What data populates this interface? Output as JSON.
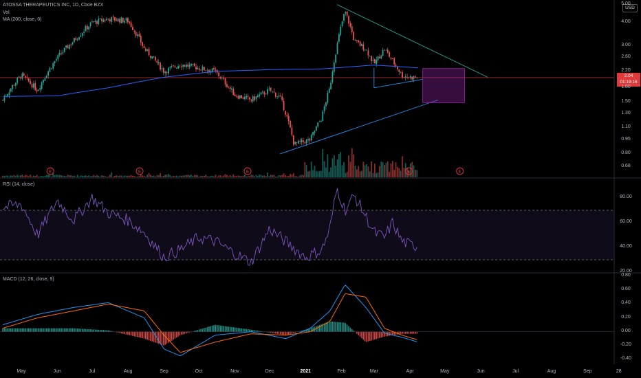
{
  "header": {
    "symbol": "ATOSSA THERAPEUTICS INC, 1D, Cboe BZX",
    "vol_label": "Vol",
    "ma_label": "MA (200, close, 0)",
    "currency": "USD"
  },
  "price_tag": {
    "value": "2.04",
    "countdown": "01:19:16"
  },
  "rsi_label": "RSI (14, close)",
  "macd_label": "MACD (12, 26, close, 9)",
  "colors": {
    "up": "#26a69a",
    "down": "#ef5350",
    "ma": "#2962ff",
    "rsi": "#7e57c2",
    "macd": "#2196f3",
    "signal": "#ff6d00",
    "trend_down": "#26a69a",
    "trend_up": "#2196f3",
    "box": "#9c27b0",
    "price_line": "#e03a3a"
  },
  "chart_data": [
    {
      "type": "candlestick",
      "panel": "price",
      "title": "ATOSSA THERAPEUTICS INC, 1D, Cboe BZX",
      "y_scale": "log",
      "ylim": [
        0.6,
        5.2
      ],
      "y_ticks": [
        "5.00",
        "4.00",
        "3.00",
        "2.60",
        "2.20",
        "1.80",
        "1.50",
        "1.30",
        "1.10",
        "0.95",
        "0.80",
        "0.68"
      ],
      "x_ticks": [
        "May",
        "Jun",
        "Jul",
        "Aug",
        "Sep",
        "Oct",
        "Nov",
        "Dec",
        "2021",
        "Feb",
        "Mar",
        "Apr",
        "May",
        "Jun",
        "Jul",
        "Aug",
        "Sep",
        "28"
      ],
      "earnings_markers": [
        "E",
        "E",
        "E",
        "E",
        "E"
      ],
      "series": [
        {
          "name": "Close",
          "x": [
            "2020-04-15",
            "2020-05-01",
            "2020-05-15",
            "2020-06-01",
            "2020-06-15",
            "2020-07-01",
            "2020-07-15",
            "2020-08-01",
            "2020-08-15",
            "2020-09-01",
            "2020-09-15",
            "2020-10-01",
            "2020-10-15",
            "2020-11-01",
            "2020-11-15",
            "2020-12-01",
            "2020-12-10",
            "2020-12-22",
            "2021-01-05",
            "2021-01-15",
            "2021-01-22",
            "2021-01-28",
            "2021-02-04",
            "2021-02-12",
            "2021-02-22",
            "2021-03-01",
            "2021-03-10",
            "2021-03-17",
            "2021-03-25",
            "2021-04-01",
            "2021-04-08"
          ],
          "values": [
            1.55,
            2.1,
            1.75,
            2.6,
            3.2,
            4.0,
            4.2,
            4.1,
            2.9,
            2.2,
            2.4,
            2.3,
            2.2,
            1.65,
            1.55,
            1.75,
            1.6,
            0.9,
            0.95,
            1.25,
            1.8,
            3.0,
            4.6,
            3.2,
            2.9,
            2.4,
            2.9,
            2.5,
            2.1,
            2.05,
            2.04
          ]
        },
        {
          "name": "MA (200, close, 0)",
          "x": [
            "2020-04-15",
            "2020-06-01",
            "2020-07-15",
            "2020-09-01",
            "2020-10-15",
            "2020-12-01",
            "2021-01-15",
            "2021-03-01",
            "2021-04-08"
          ],
          "values": [
            1.62,
            1.63,
            1.8,
            2.05,
            2.2,
            2.25,
            2.27,
            2.38,
            2.3
          ]
        }
      ]
    },
    {
      "type": "line",
      "panel": "rsi",
      "title": "RSI (14, close)",
      "ylim": [
        20,
        90
      ],
      "y_ticks": [
        "80.00",
        "60.00",
        "40.00",
        "20.00"
      ],
      "bands": [
        70,
        30
      ],
      "series": [
        {
          "name": "RSI (14, close)",
          "x": [
            "2020-04-15",
            "2020-05-01",
            "2020-05-15",
            "2020-06-01",
            "2020-06-15",
            "2020-07-01",
            "2020-07-15",
            "2020-08-01",
            "2020-08-15",
            "2020-09-01",
            "2020-09-15",
            "2020-10-01",
            "2020-10-15",
            "2020-11-01",
            "2020-11-15",
            "2020-12-01",
            "2021-01-01",
            "2021-01-15",
            "2021-01-22",
            "2021-01-28",
            "2021-02-04",
            "2021-02-12",
            "2021-02-22",
            "2021-03-01",
            "2021-03-10",
            "2021-03-17",
            "2021-03-25",
            "2021-04-01",
            "2021-04-08"
          ],
          "values": [
            72,
            75,
            50,
            78,
            62,
            80,
            68,
            62,
            52,
            32,
            38,
            48,
            45,
            35,
            28,
            55,
            32,
            38,
            55,
            88,
            70,
            82,
            65,
            52,
            48,
            60,
            45,
            42,
            41
          ]
        }
      ]
    },
    {
      "type": "line",
      "panel": "macd",
      "title": "MACD (12, 26, close, 9)",
      "ylim": [
        -0.45,
        0.85
      ],
      "y_ticks": [
        "0.80",
        "0.60",
        "0.40",
        "0.20",
        "0.00",
        "-0.20",
        "-0.40"
      ],
      "series": [
        {
          "name": "MACD",
          "x": [
            "2020-04-15",
            "2020-05-15",
            "2020-06-15",
            "2020-07-15",
            "2020-08-15",
            "2020-09-01",
            "2020-09-15",
            "2020-10-15",
            "2020-11-15",
            "2020-12-15",
            "2021-01-05",
            "2021-01-22",
            "2021-02-04",
            "2021-02-22",
            "2021-03-10",
            "2021-03-25",
            "2021-04-08"
          ],
          "values": [
            0.1,
            0.25,
            0.35,
            0.42,
            0.2,
            -0.25,
            -0.35,
            -0.05,
            0.0,
            -0.1,
            0.05,
            0.3,
            0.68,
            0.35,
            -0.02,
            -0.08,
            -0.15
          ]
        },
        {
          "name": "Signal",
          "x": [
            "2020-04-15",
            "2020-05-15",
            "2020-06-15",
            "2020-07-15",
            "2020-08-15",
            "2020-09-01",
            "2020-09-15",
            "2020-10-15",
            "2020-11-15",
            "2020-12-15",
            "2021-01-05",
            "2021-01-22",
            "2021-02-04",
            "2021-02-22",
            "2021-03-10",
            "2021-03-25",
            "2021-04-08"
          ],
          "values": [
            0.05,
            0.2,
            0.3,
            0.4,
            0.3,
            -0.05,
            -0.3,
            -0.15,
            -0.03,
            -0.05,
            0.0,
            0.15,
            0.55,
            0.5,
            0.05,
            -0.05,
            -0.12
          ]
        }
      ]
    }
  ]
}
